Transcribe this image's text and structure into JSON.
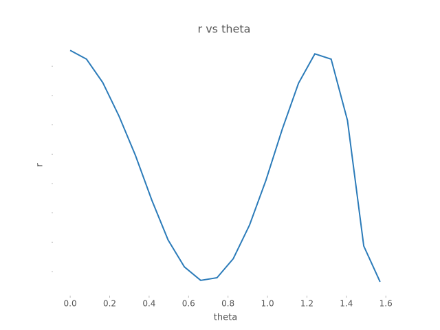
{
  "chart_data": {
    "type": "line",
    "title": "r vs theta",
    "x_label": "theta",
    "y_label": "r",
    "series": [
      {
        "name": "r",
        "color": "#2b7bb9",
        "x": [
          0,
          0.0827,
          0.1653,
          0.248,
          0.3307,
          0.4134,
          0.496,
          0.5787,
          0.6614,
          0.7441,
          0.8267,
          0.9094,
          0.9921,
          1.0748,
          1.1574,
          1.2401,
          1.3228,
          1.4055,
          1.4881,
          1.5708
        ],
        "values": [
          7.54,
          7.24,
          6.44,
          5.29,
          3.96,
          2.44,
          1.08,
          0.16,
          -0.3,
          -0.21,
          0.44,
          1.59,
          3.11,
          4.85,
          6.42,
          7.42,
          7.24,
          5.15,
          0.87,
          -0.35
        ]
      }
    ],
    "xlim": [
      -0.077,
      1.648
    ],
    "ylim": [
      -0.82,
      7.85
    ],
    "xticks": [
      {
        "value": 0,
        "label": "0.0"
      },
      0.2,
      0.4,
      0.6,
      0.8,
      {
        "value": 1,
        "label": "1.0"
      },
      1.2,
      1.4,
      1.6
    ],
    "yticks": [
      0,
      1,
      2,
      3,
      4,
      5,
      6,
      7
    ]
  }
}
